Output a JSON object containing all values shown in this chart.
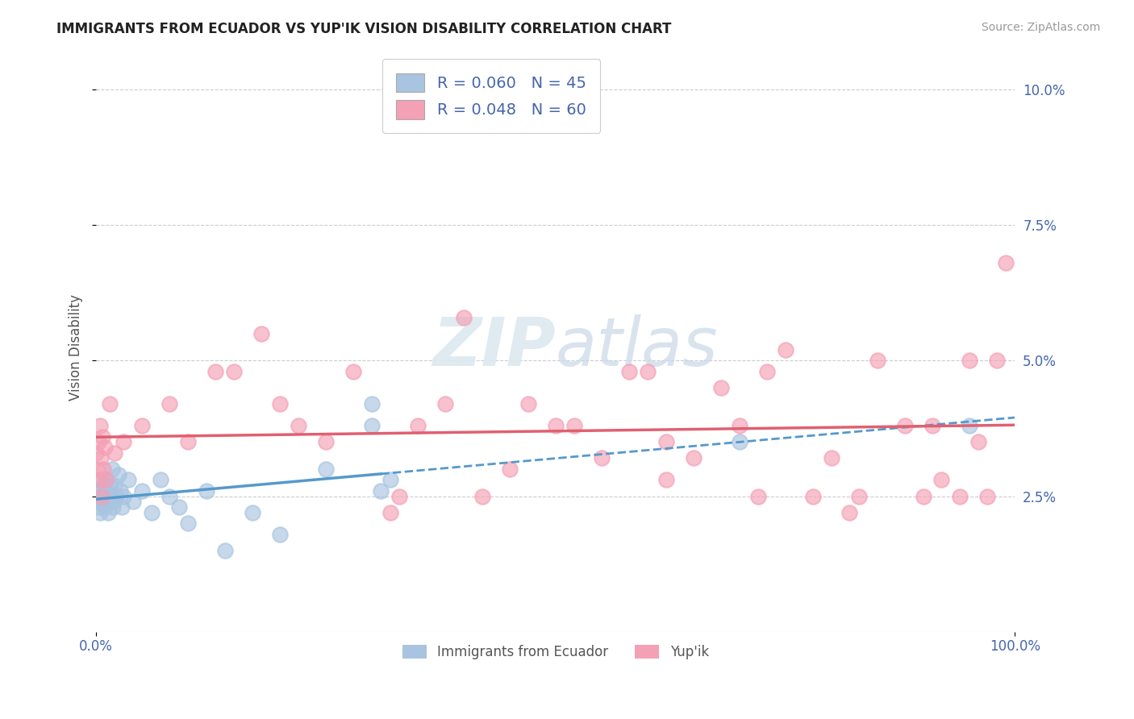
{
  "title": "IMMIGRANTS FROM ECUADOR VS YUP'IK VISION DISABILITY CORRELATION CHART",
  "source": "Source: ZipAtlas.com",
  "ylabel": "Vision Disability",
  "legend_label1": "Immigrants from Ecuador",
  "legend_label2": "Yup'ik",
  "r1": 0.06,
  "n1": 45,
  "r2": 0.048,
  "n2": 60,
  "color1": "#a8c4e0",
  "color2": "#f4a0b5",
  "trend1_color": "#5599cc",
  "trend2_color": "#e06070",
  "watermark": "ZIPatlas",
  "xlim": [
    0.0,
    1.0
  ],
  "ylim": [
    0.0,
    0.105
  ],
  "yticks": [
    0.025,
    0.05,
    0.075,
    0.1
  ],
  "ytick_labels": [
    "2.5%",
    "5.0%",
    "7.5%",
    "10.0%"
  ],
  "ecuador_x": [
    0.0,
    0.001,
    0.002,
    0.003,
    0.004,
    0.005,
    0.006,
    0.007,
    0.008,
    0.009,
    0.01,
    0.011,
    0.012,
    0.013,
    0.014,
    0.015,
    0.016,
    0.017,
    0.018,
    0.019,
    0.02,
    0.022,
    0.024,
    0.026,
    0.028,
    0.03,
    0.035,
    0.04,
    0.05,
    0.06,
    0.07,
    0.08,
    0.09,
    0.1,
    0.12,
    0.14,
    0.17,
    0.2,
    0.25,
    0.3,
    0.31,
    0.32,
    0.3,
    0.7,
    0.95
  ],
  "ecuador_y": [
    0.024,
    0.025,
    0.023,
    0.026,
    0.022,
    0.028,
    0.025,
    0.024,
    0.027,
    0.023,
    0.026,
    0.028,
    0.025,
    0.022,
    0.024,
    0.027,
    0.025,
    0.03,
    0.023,
    0.024,
    0.027,
    0.025,
    0.029,
    0.026,
    0.023,
    0.025,
    0.028,
    0.024,
    0.026,
    0.022,
    0.028,
    0.025,
    0.023,
    0.02,
    0.026,
    0.015,
    0.022,
    0.018,
    0.03,
    0.038,
    0.026,
    0.028,
    0.042,
    0.035,
    0.038
  ],
  "yupik_x": [
    0.0,
    0.001,
    0.002,
    0.003,
    0.004,
    0.005,
    0.006,
    0.007,
    0.008,
    0.009,
    0.01,
    0.015,
    0.02,
    0.03,
    0.05,
    0.08,
    0.1,
    0.13,
    0.18,
    0.22,
    0.28,
    0.35,
    0.4,
    0.47,
    0.52,
    0.58,
    0.62,
    0.65,
    0.68,
    0.7,
    0.73,
    0.75,
    0.78,
    0.8,
    0.83,
    0.85,
    0.88,
    0.9,
    0.92,
    0.94,
    0.95,
    0.96,
    0.97,
    0.98,
    0.99,
    0.5,
    0.55,
    0.6,
    0.32,
    0.38,
    0.42,
    0.15,
    0.2,
    0.25,
    0.33,
    0.45,
    0.62,
    0.72,
    0.82,
    0.91
  ],
  "yupik_y": [
    0.033,
    0.03,
    0.035,
    0.028,
    0.038,
    0.032,
    0.025,
    0.036,
    0.03,
    0.034,
    0.028,
    0.042,
    0.033,
    0.035,
    0.038,
    0.042,
    0.035,
    0.048,
    0.055,
    0.038,
    0.048,
    0.038,
    0.058,
    0.042,
    0.038,
    0.048,
    0.035,
    0.032,
    0.045,
    0.038,
    0.048,
    0.052,
    0.025,
    0.032,
    0.025,
    0.05,
    0.038,
    0.025,
    0.028,
    0.025,
    0.05,
    0.035,
    0.025,
    0.05,
    0.068,
    0.038,
    0.032,
    0.048,
    0.022,
    0.042,
    0.025,
    0.048,
    0.042,
    0.035,
    0.025,
    0.03,
    0.028,
    0.025,
    0.022,
    0.038
  ],
  "trend1_x_solid_end": 0.31,
  "trend1_intercept": 0.026,
  "trend1_slope": 0.02,
  "trend2_intercept": 0.034,
  "trend2_slope": 0.004
}
